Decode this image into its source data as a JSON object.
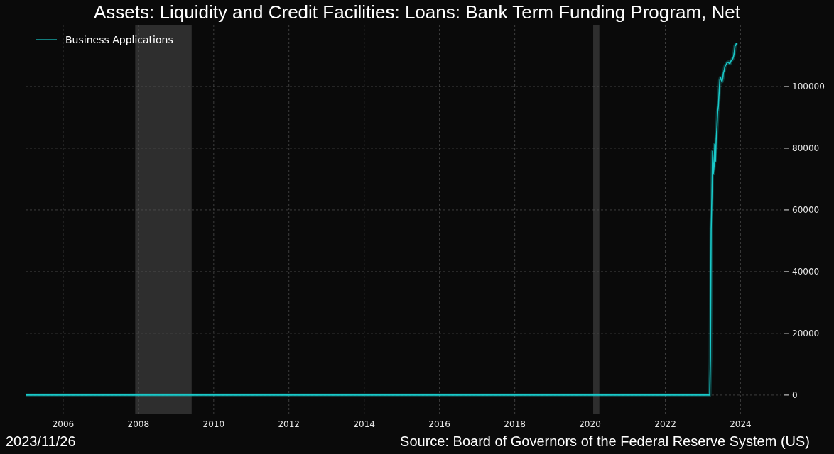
{
  "chart_data": {
    "type": "line",
    "title": "Assets: Liquidity and Credit Facilities: Loans: Bank Term Funding Program, Net",
    "annotations": [
      "2023/11/26",
      "Source: Board of Governors of the Federal Reserve System (US)"
    ],
    "x": [
      "2005-01-05",
      "2023-03-08",
      "2023-03-15",
      "2023-03-22",
      "2023-03-29",
      "2023-04-05",
      "2023-04-12",
      "2023-04-19",
      "2023-04-26",
      "2023-05-03",
      "2023-05-10",
      "2023-05-17",
      "2023-05-24",
      "2023-05-31",
      "2023-06-07",
      "2023-06-14",
      "2023-06-21",
      "2023-06-28",
      "2023-07-05",
      "2023-07-12",
      "2023-07-19",
      "2023-07-26",
      "2023-08-02",
      "2023-08-09",
      "2023-08-16",
      "2023-08-23",
      "2023-08-30",
      "2023-09-06",
      "2023-09-13",
      "2023-09-20",
      "2023-09-27",
      "2023-10-04",
      "2023-10-11",
      "2023-10-18",
      "2023-10-25",
      "2023-11-01",
      "2023-11-08",
      "2023-11-15",
      "2023-11-22"
    ],
    "series": [
      {
        "name": "Business Applications",
        "color": "#19c9c9",
        "values": [
          0,
          0,
          11900,
          53700,
          64400,
          79000,
          71800,
          74000,
          81300,
          75800,
          83100,
          86800,
          91800,
          93600,
          98000,
          102000,
          102900,
          102200,
          101600,
          102500,
          104400,
          105100,
          106400,
          106900,
          107200,
          107700,
          107800,
          107900,
          107500,
          107400,
          108000,
          108500,
          108700,
          109000,
          109700,
          111000,
          113100,
          113300,
          114100
        ]
      }
    ],
    "xlim": [
      "2005-01-01",
      "2025-02-01"
    ],
    "xticks": [
      "2006",
      "2008",
      "2010",
      "2012",
      "2014",
      "2016",
      "2018",
      "2020",
      "2022",
      "2024"
    ],
    "ylim": [
      -6000,
      120000
    ],
    "yticks": [
      0,
      20000,
      40000,
      60000,
      80000,
      100000
    ],
    "bands": [
      {
        "axis": "x",
        "from": "2007-12",
        "to": "2009-06",
        "color": "#2e2e2e"
      },
      {
        "axis": "x",
        "from": "2020-02",
        "to": "2020-04",
        "color": "#2e2e2e"
      }
    ],
    "grid": true,
    "legend": "top left",
    "line_style": "solid",
    "marker": "none"
  }
}
